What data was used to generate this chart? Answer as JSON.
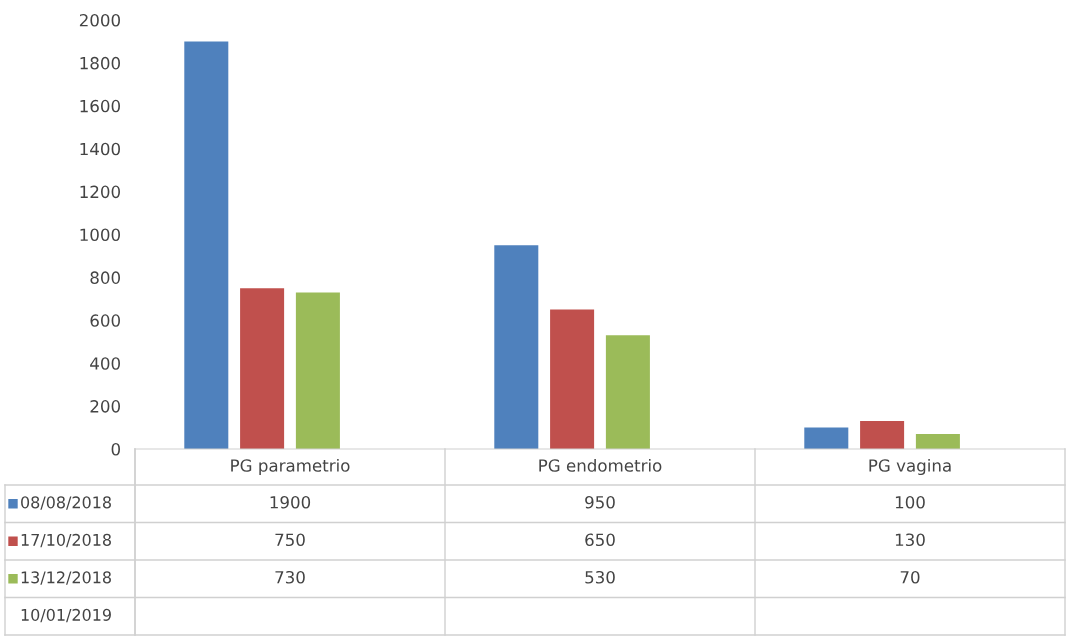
{
  "chart_data": {
    "type": "bar",
    "categories": [
      "PG parametrio",
      "PG endometrio",
      "PG vagina"
    ],
    "series": [
      {
        "name": "08/08/2018",
        "color": "#4f81bd",
        "values": [
          1900,
          950,
          100
        ]
      },
      {
        "name": "17/10/2018",
        "color": "#c0504d",
        "values": [
          750,
          650,
          130
        ]
      },
      {
        "name": "13/12/2018",
        "color": "#9bbb59",
        "values": [
          730,
          530,
          70
        ]
      },
      {
        "name": "10/01/2019",
        "values": [
          null,
          null,
          null
        ]
      }
    ],
    "ylim": [
      0,
      2000
    ],
    "yticks": [
      0,
      200,
      400,
      600,
      800,
      1000,
      1200,
      1400,
      1600,
      1800,
      2000
    ],
    "grid": false,
    "legend": "bottom",
    "data_labels": true
  }
}
